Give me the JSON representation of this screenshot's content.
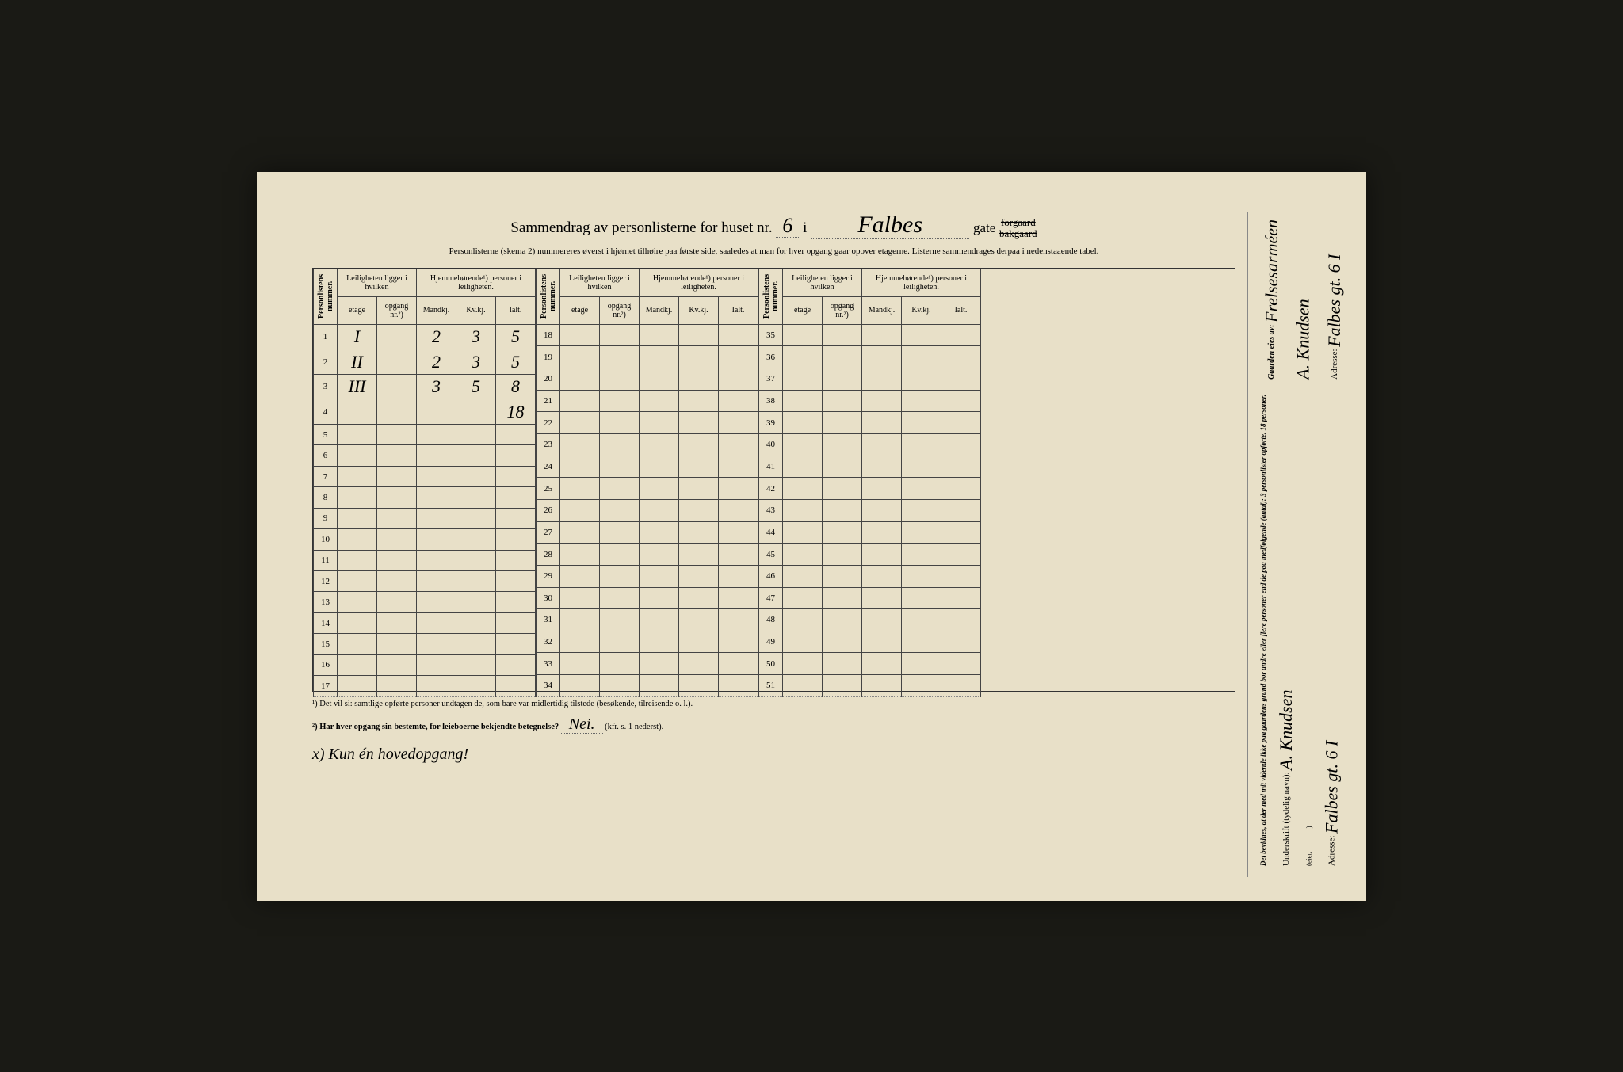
{
  "title": {
    "prefix": "Sammendrag av personlisterne for huset nr.",
    "house_nr": "6",
    "i": "i",
    "street": "Falbes",
    "gate": "gate",
    "suffix_top": "forgaard",
    "suffix_bottom": "bakgaard"
  },
  "subtitle": "Personlisterne (skema 2) nummereres øverst i hjørnet tilhøire paa første side, saaledes at man for hver opgang gaar opover etagerne. Listerne sammendrages derpaa i nedenstaaende tabel.",
  "headers": {
    "personlistens_nummer": "Personlistens nummer.",
    "leilighet": "Leiligheten ligger i hvilken",
    "hjemmehorende": "Hjemmehørende¹) personer i leiligheten.",
    "etage": "etage",
    "opgang": "opgang nr.²)",
    "mandkj": "Mandkj.",
    "kvkj": "Kv.kj.",
    "ialt": "Ialt."
  },
  "data_rows": [
    {
      "num": "1",
      "etage": "I",
      "opgang": "",
      "m": "2",
      "k": "3",
      "ialt": "5"
    },
    {
      "num": "2",
      "etage": "II",
      "opgang": "",
      "m": "2",
      "k": "3",
      "ialt": "5"
    },
    {
      "num": "3",
      "etage": "III",
      "opgang": "",
      "m": "3",
      "k": "5",
      "ialt": "8"
    }
  ],
  "sum_row": {
    "num": "4",
    "ialt": "18"
  },
  "block_ranges": [
    {
      "start": 1,
      "end": 17
    },
    {
      "start": 18,
      "end": 34
    },
    {
      "start": 35,
      "end": 51
    }
  ],
  "footnotes": {
    "note1": "¹) Det vil si: samtlige opførte personer undtagen de, som bare var midlertidig tilstede (besøkende, tilreisende o. l.).",
    "note2_label": "²) Har hver opgang sin bestemte, for leieboerne bekjendte betegnelse?",
    "note2_answer": "Nei.",
    "note2_suffix": "(kfr. s. 1 nederst).",
    "bottom_x": "x) Kun én hovedopgang!"
  },
  "sidebar": {
    "gaarden_label": "Gaarden eies av:",
    "gaarden_value": "Frelsesarméen",
    "owner_name": "A. Knudsen",
    "adresse_label": "Adresse:",
    "adresse_value": "Falbes gt. 6 I",
    "bevidnes": "Det bevidnes, at der med mit vidende ikke paa gaardens grund bor andre eller flere personer end de paa medfølgende (antal): 3 personlister opførte. 18 personer.",
    "underskrift_label": "Underskrift (tydelig navn):",
    "underskrift_value": "A. Knudsen",
    "eier": "(eier, ______)",
    "adresse2_label": "Adresse:",
    "adresse2_value": "Falbes gt. 6 I"
  },
  "colors": {
    "paper": "#e8e0c8",
    "ink": "#2a2a2a",
    "border": "#444444"
  }
}
